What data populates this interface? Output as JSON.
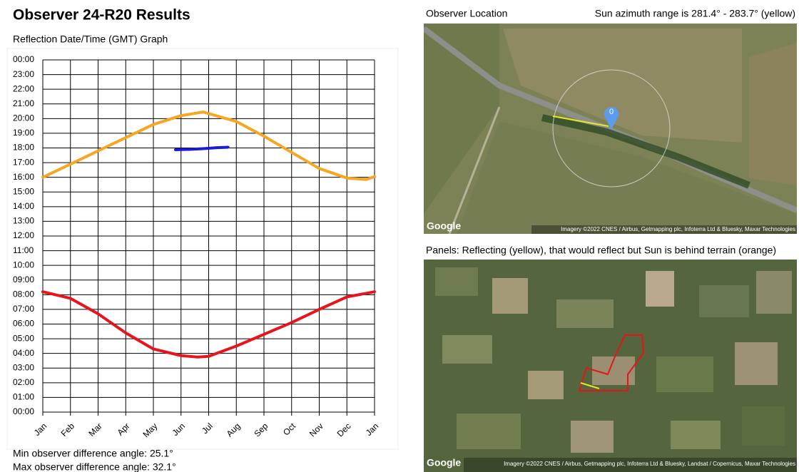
{
  "title": "Observer 24-R20 Results",
  "chart_data": {
    "type": "line",
    "title": "Reflection Date/Time (GMT) Graph",
    "xlim": [
      0,
      12
    ],
    "xticks": [
      {
        "value": 0,
        "label": "Jan"
      },
      {
        "value": 1,
        "label": "Feb"
      },
      {
        "value": 2,
        "label": "Mar"
      },
      {
        "value": 3,
        "label": "Apr"
      },
      {
        "value": 4,
        "label": "May"
      },
      {
        "value": 5,
        "label": "Jun"
      },
      {
        "value": 6,
        "label": "Jul"
      },
      {
        "value": 7,
        "label": "Aug"
      },
      {
        "value": 8,
        "label": "Sep"
      },
      {
        "value": 9,
        "label": "Oct"
      },
      {
        "value": 10,
        "label": "Nov"
      },
      {
        "value": 11,
        "label": "Dec"
      },
      {
        "value": 12,
        "label": "Jan"
      }
    ],
    "ylim": [
      0,
      24
    ],
    "yticks": [
      {
        "value": 0,
        "label": "00:00"
      },
      {
        "value": 1,
        "label": "01:00"
      },
      {
        "value": 2,
        "label": "02:00"
      },
      {
        "value": 3,
        "label": "03:00"
      },
      {
        "value": 4,
        "label": "04:00"
      },
      {
        "value": 5,
        "label": "05:00"
      },
      {
        "value": 6,
        "label": "06:00"
      },
      {
        "value": 7,
        "label": "07:00"
      },
      {
        "value": 8,
        "label": "08:00"
      },
      {
        "value": 9,
        "label": "09:00"
      },
      {
        "value": 10,
        "label": "10:00"
      },
      {
        "value": 11,
        "label": "11:00"
      },
      {
        "value": 12,
        "label": "12:00"
      },
      {
        "value": 13,
        "label": "13:00"
      },
      {
        "value": 14,
        "label": "14:00"
      },
      {
        "value": 15,
        "label": "15:00"
      },
      {
        "value": 16,
        "label": "16:00"
      },
      {
        "value": 17,
        "label": "17:00"
      },
      {
        "value": 18,
        "label": "18:00"
      },
      {
        "value": 19,
        "label": "19:00"
      },
      {
        "value": 20,
        "label": "20:00"
      },
      {
        "value": 21,
        "label": "21:00"
      },
      {
        "value": 22,
        "label": "22:00"
      },
      {
        "value": 23,
        "label": "23:00"
      },
      {
        "value": 24,
        "label": "00:00"
      }
    ],
    "grid": true,
    "series": [
      {
        "color": "#f5a623",
        "x": [
          0,
          1,
          2,
          3,
          4,
          5,
          5.8,
          7,
          8,
          9,
          10,
          11,
          11.7,
          12
        ],
        "values": [
          16.0,
          16.9,
          17.8,
          18.7,
          19.6,
          20.2,
          20.45,
          19.8,
          18.8,
          17.7,
          16.6,
          15.95,
          15.85,
          16.05
        ]
      },
      {
        "color": "#e8141b",
        "x": [
          0,
          1,
          2,
          3,
          4,
          5,
          5.6,
          6,
          7,
          8,
          9,
          10,
          11,
          12
        ],
        "values": [
          8.2,
          7.75,
          6.7,
          5.4,
          4.3,
          3.85,
          3.75,
          3.8,
          4.5,
          5.3,
          6.1,
          7.0,
          7.85,
          8.2
        ]
      },
      {
        "color": "#1a1ad8",
        "x": [
          4.8,
          5.3,
          5.8,
          6.3,
          6.7
        ],
        "values": [
          17.88,
          17.9,
          17.95,
          18.02,
          18.05
        ]
      }
    ]
  },
  "stats": [
    "Min observer difference angle: 25.1°",
    "Max observer difference angle: 32.1°"
  ],
  "map1": {
    "label": "Observer Location",
    "azimuth": "Sun azimuth range is 281.4° - 283.7° (yellow)",
    "pin": "0",
    "logo": "Google",
    "credit": "Imagery ©2022 CNES / Airbus, Getmapping plc, Infoterra Ltd & Bluesky, Maxar Technologies"
  },
  "map2": {
    "label": "Panels: Reflecting (yellow), that would reflect but Sun is behind terrain (orange)",
    "logo": "Google",
    "credit": "Imagery ©2022 CNES / Airbus, Getmapping plc, Infoterra Ltd & Bluesky, Landsat / Copernicus, Maxar Technologies"
  }
}
